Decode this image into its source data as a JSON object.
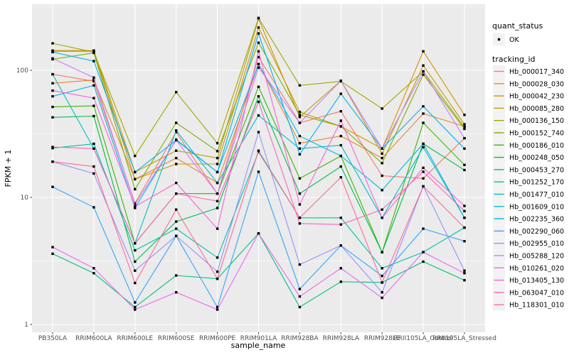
{
  "figure": {
    "bg_color": "#FFFFFF",
    "panel_bg_color": "#EBEBEB",
    "grid_color": "#FFFFFF",
    "tick_label_color": "#4D4D4D",
    "point_color": "#000000",
    "legend_key_bg": "#F2F2F2"
  },
  "axes": {
    "x_title": "sample_name",
    "y_title": "FPKM + 1",
    "y_tick_labels": [
      "1",
      "10",
      "100"
    ]
  },
  "legend": {
    "quant_title": "quant_status",
    "quant_items": [
      {
        "label": "OK",
        "marker": "black-square-point"
      }
    ],
    "tracking_title": "tracking_id"
  },
  "chart_data": {
    "type": "line",
    "x_axis": "sample_name",
    "y_axis": "FPKM + 1",
    "y_scale": "log10",
    "ylim": [
      0.87,
      331
    ],
    "y_major_ticks": [
      1,
      10,
      100
    ],
    "y_minor_ticks": [
      3.162,
      31.62,
      316.2
    ],
    "grid": true,
    "legend_position": "right",
    "point_shape": "filled-square",
    "categories": [
      "PB350LA",
      "RRIM600LA",
      "RRIM600LE",
      "RRIM600SE",
      "RRIM600PE",
      "RRIM901LA",
      "RRIM928BA",
      "RRIM928LA",
      "RRIM928LE",
      "RRII105LA_Control",
      "RRII105LA_Stressed"
    ],
    "series": [
      {
        "name": "Hb_000017_340",
        "color": "#F8766D",
        "values": [
          93,
          82,
          9.0,
          32.6,
          10.7,
          127,
          38.6,
          47.6,
          14.8,
          14.1,
          29.2
        ]
      },
      {
        "name": "Hb_000028_030",
        "color": "#EA8331",
        "values": [
          79,
          84,
          13.9,
          20.4,
          13.0,
          112,
          26.7,
          30.4,
          20.4,
          45.6,
          36.2
        ]
      },
      {
        "name": "Hb_000042_230",
        "color": "#D89000",
        "values": [
          141,
          141,
          13.9,
          18.3,
          18.3,
          217,
          47.0,
          36.2,
          24.2,
          141,
          44.6
        ]
      },
      {
        "name": "Hb_000085_280",
        "color": "#C09B00",
        "values": [
          143,
          143,
          15.8,
          23.3,
          20.4,
          254,
          42.9,
          82.8,
          22.1,
          109,
          37.6
        ]
      },
      {
        "name": "Hb_000136_150",
        "color": "#A3A500",
        "values": [
          163,
          139,
          21.2,
          67.3,
          26.7,
          258,
          76.0,
          81.8,
          50.0,
          98,
          35.6
        ]
      },
      {
        "name": "Hb_000152_740",
        "color": "#7CAE00",
        "values": [
          122,
          137,
          11.6,
          38.6,
          23.1,
          165,
          44.6,
          36.2,
          18.6,
          92.4,
          34.6
        ]
      },
      {
        "name": "Hb_000186_010",
        "color": "#39B600",
        "values": [
          51.5,
          52.5,
          4.35,
          10.7,
          10.7,
          74.1,
          14.1,
          21.2,
          3.7,
          38.6,
          18.0
        ]
      },
      {
        "name": "Hb_000248_050",
        "color": "#00BB4E",
        "values": [
          42.6,
          43.6,
          3.12,
          6.45,
          8.24,
          62.4,
          10.7,
          17.5,
          3.7,
          26.4,
          16.4
        ]
      },
      {
        "name": "Hb_000453_270",
        "color": "#00BF7D",
        "values": [
          3.6,
          2.53,
          1.37,
          2.43,
          2.29,
          5.2,
          1.37,
          2.17,
          2.14,
          3.12,
          2.23
        ]
      },
      {
        "name": "Hb_001252_170",
        "color": "#00C1A3",
        "values": [
          24.4,
          26.4,
          3.83,
          5.67,
          3.36,
          22.8,
          6.9,
          6.9,
          2.77,
          3.71,
          5.78
        ]
      },
      {
        "name": "Hb_001477_010",
        "color": "#00BFC4",
        "values": [
          93,
          24.2,
          4.35,
          33.6,
          13.0,
          44.1,
          24.2,
          25.7,
          6.9,
          24.8,
          6.9
        ]
      },
      {
        "name": "Hb_001609_010",
        "color": "#00BAE0",
        "values": [
          62.4,
          76.0,
          8.24,
          28.5,
          15.8,
          112,
          30.4,
          21.2,
          11.4,
          26.4,
          6.9
        ]
      },
      {
        "name": "Hb_002235_360",
        "color": "#00B0F6",
        "values": [
          139,
          118,
          15.8,
          28.2,
          15.8,
          195,
          21.8,
          65.3,
          24.2,
          52.0,
          24.2
        ]
      },
      {
        "name": "Hb_002290_060",
        "color": "#35A2FF",
        "values": [
          12.1,
          8.35,
          1.49,
          4.98,
          1.37,
          15.9,
          1.9,
          4.18,
          2.41,
          5.67,
          4.52
        ]
      },
      {
        "name": "Hb_002955_010",
        "color": "#9590FF",
        "values": [
          19.1,
          15.4,
          2.65,
          4.98,
          2.6,
          32.6,
          2.96,
          4.18,
          1.79,
          12.2,
          2.65
        ]
      },
      {
        "name": "Hb_005288_120",
        "color": "#C77CFF",
        "values": [
          124,
          87.6,
          8.79,
          28.2,
          10.7,
          105,
          38.6,
          82.8,
          24.2,
          98,
          29.2
        ]
      },
      {
        "name": "Hb_010261_020",
        "color": "#E76BF3",
        "values": [
          4.06,
          2.77,
          1.31,
          1.79,
          1.31,
          5.2,
          1.66,
          2.77,
          1.62,
          3.71,
          2.53
        ]
      },
      {
        "name": "Hb_013405_130",
        "color": "#FA62DB",
        "values": [
          69.2,
          60.4,
          8.46,
          13.0,
          5.67,
          141,
          8.79,
          40.1,
          6.9,
          17.1,
          8.57
        ]
      },
      {
        "name": "Hb_063047_010",
        "color": "#FF62BC",
        "values": [
          24.9,
          24.2,
          4.35,
          10.7,
          9.34,
          56.5,
          6.23,
          6.12,
          8.02,
          15.9,
          7.8
        ]
      },
      {
        "name": "Hb_118301_010",
        "color": "#FF6A98",
        "values": [
          19.1,
          17.5,
          2.12,
          8.02,
          2.29,
          23.3,
          6.9,
          14.4,
          2.14,
          12.2,
          5.78
        ]
      }
    ]
  }
}
